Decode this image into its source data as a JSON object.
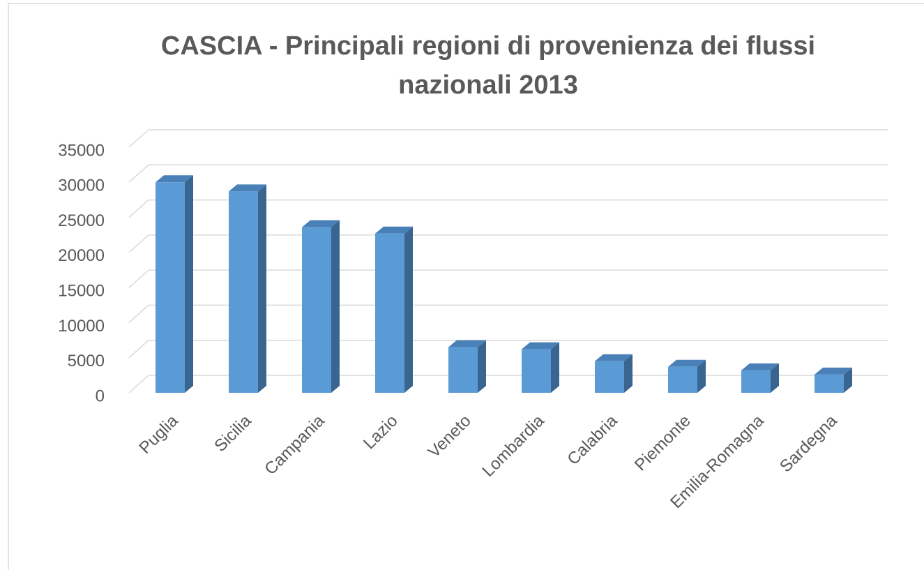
{
  "chart_data": {
    "type": "bar3d",
    "title": "CASCIA - Principali regioni di provenienza dei flussi nazionali 2013",
    "categories": [
      "Puglia",
      "Sicilia",
      "Campania",
      "Lazio",
      "Veneto",
      "Lombardia",
      "Calabria",
      "Piemonte",
      "Emilia-Romagna",
      "Sardegna"
    ],
    "values": [
      30000,
      28700,
      23600,
      22700,
      6500,
      6200,
      4500,
      3700,
      3200,
      2600
    ],
    "color": "#5b9bd5",
    "ylim": [
      0,
      35000
    ],
    "yticks": [
      0,
      5000,
      10000,
      15000,
      20000,
      25000,
      30000,
      35000
    ],
    "grid": true
  }
}
